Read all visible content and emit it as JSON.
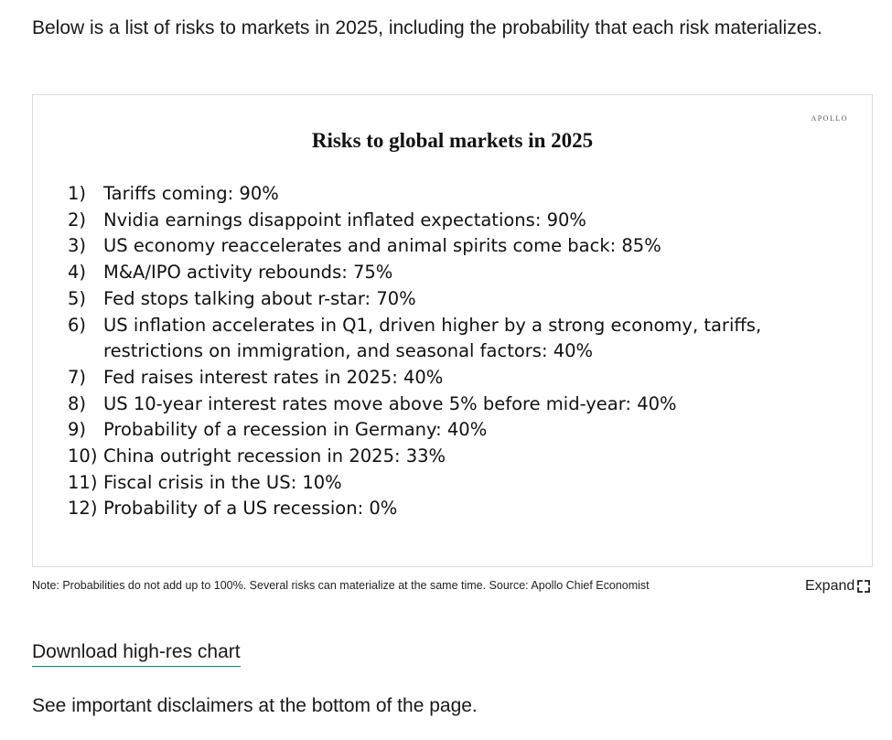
{
  "intro": {
    "text": "Below is a list of risks to markets in 2025, including the probability that each risk materializes."
  },
  "figure": {
    "brand": "APOLLO",
    "title": "Risks to global markets in 2025",
    "risks": [
      {
        "num": "1)",
        "text": "Tariffs coming: 90%"
      },
      {
        "num": "2)",
        "text": "Nvidia earnings disappoint inflated expectations: 90%"
      },
      {
        "num": "3)",
        "text": "US economy reaccelerates and animal spirits come back: 85%"
      },
      {
        "num": "4)",
        "text": "M&A/IPO activity rebounds: 75%"
      },
      {
        "num": "5)",
        "text": "Fed stops talking about r-star: 70%"
      },
      {
        "num": "6)",
        "text": "US inflation accelerates in Q1, driven higher by a strong economy, tariffs, restrictions on immigration, and seasonal factors: 40%"
      },
      {
        "num": "7)",
        "text": "Fed raises interest rates in 2025: 40%"
      },
      {
        "num": "8)",
        "text": "US 10-year interest rates move above 5% before mid-year: 40%"
      },
      {
        "num": "9)",
        "text": "Probability of a recession in Germany: 40%"
      },
      {
        "num": "10)",
        "text": "China outright recession in 2025: 33%"
      },
      {
        "num": "11)",
        "text": "Fiscal crisis in the US: 10%"
      },
      {
        "num": "12)",
        "text": "Probability of a US recession: 0%"
      }
    ]
  },
  "note": {
    "text": "Note: Probabilities do not add up to 100%. Several risks can materialize at the same time. Source: Apollo Chief Economist"
  },
  "expand": {
    "label": "Expand",
    "icon": "expand-arrows-icon"
  },
  "download": {
    "label": "Download high-res chart"
  },
  "disclaimer": {
    "text": "See important disclaimers at the bottom of the page."
  },
  "colors": {
    "link_underline": "#2b7a6f",
    "frame_border": "#dcdcdc"
  }
}
